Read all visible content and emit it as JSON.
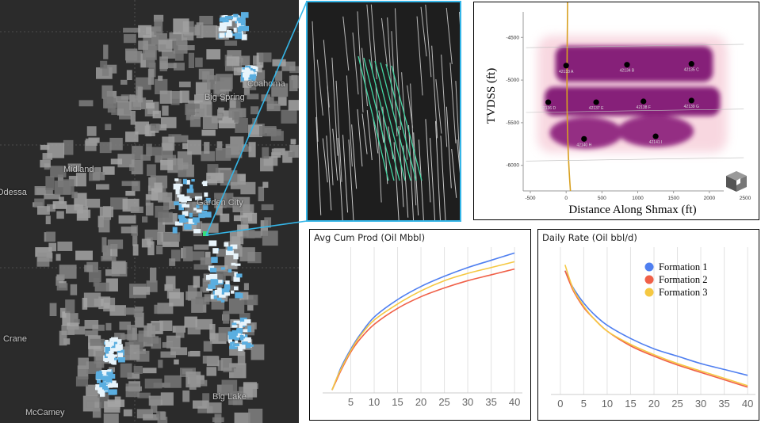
{
  "map": {
    "place_labels": [
      "Odessa",
      "Midland",
      "Garden City",
      "Big Spring",
      "Coahoma",
      "Crane",
      "McCamey",
      "Big Lake"
    ]
  },
  "chart_data": [
    {
      "type": "heatmap",
      "title": "",
      "xlabel": "Distance Along Shmax (ft)",
      "ylabel": "TVDSS (ft)",
      "xlim": [
        -600,
        2500
      ],
      "ylim": [
        -6300,
        -4200
      ],
      "x_ticks": [
        -500,
        0,
        500,
        1000,
        1500,
        2000,
        2500
      ],
      "y_ticks": [
        -4500,
        -5000,
        -5500,
        -6000
      ],
      "grid": false,
      "wells": [
        {
          "label": "42133 A",
          "x": 0,
          "y": -4830
        },
        {
          "label": "42134 B",
          "x": 850,
          "y": -4820
        },
        {
          "label": "42135 C",
          "x": 1750,
          "y": -4810
        },
        {
          "label": "42136 D",
          "x": -250,
          "y": -5260
        },
        {
          "label": "42137 E",
          "x": 420,
          "y": -5260
        },
        {
          "label": "42138 F",
          "x": 1080,
          "y": -5250
        },
        {
          "label": "42139 G",
          "x": 1750,
          "y": -5240
        },
        {
          "label": "42140 H",
          "x": 250,
          "y": -5690
        },
        {
          "label": "42141 I",
          "x": 1250,
          "y": -5660
        }
      ]
    },
    {
      "type": "line",
      "title": "Avg Cum Prod (Oil Mbbl)",
      "xlabel": "",
      "ylabel": "",
      "x_ticks": [
        5,
        10,
        15,
        20,
        25,
        30,
        35,
        40
      ],
      "xlim": [
        0,
        41
      ],
      "ylim": [
        0,
        100
      ],
      "legend": "none",
      "grid": true,
      "x": [
        1,
        2,
        3,
        5,
        7,
        10,
        15,
        20,
        25,
        30,
        35,
        40
      ],
      "series": [
        {
          "color": "#4f7ff0",
          "values": [
            2,
            10,
            18,
            30,
            40,
            52,
            64,
            73,
            80,
            86,
            91,
            96
          ]
        },
        {
          "color": "#f06048",
          "values": [
            2,
            9,
            16,
            28,
            37,
            47,
            58,
            66,
            72,
            77,
            81,
            85
          ]
        },
        {
          "color": "#f5c842",
          "values": [
            2,
            10,
            17,
            29,
            39,
            50,
            61,
            70,
            77,
            82,
            86,
            90
          ]
        }
      ]
    },
    {
      "type": "line",
      "title": "Daily Rate (Oil bbl/d)",
      "xlabel": "",
      "ylabel": "",
      "x_ticks": [
        0,
        5,
        10,
        15,
        20,
        25,
        30,
        35,
        40
      ],
      "xlim": [
        -1,
        41
      ],
      "ylim": [
        0,
        100
      ],
      "legend": "top-right",
      "grid": true,
      "x": [
        1,
        2,
        3,
        5,
        7,
        10,
        15,
        20,
        25,
        30,
        35,
        40
      ],
      "series": [
        {
          "name": "Formation 1",
          "color": "#4f7ff0",
          "values": [
            84,
            77,
            71,
            62,
            55,
            47,
            38,
            31,
            26,
            21,
            17,
            13
          ]
        },
        {
          "name": "Formation 2",
          "color": "#f06048",
          "values": [
            84,
            76,
            69,
            59,
            52,
            43,
            33,
            26,
            20,
            15,
            10,
            5
          ]
        },
        {
          "name": "Formation 3",
          "color": "#f5c842",
          "values": [
            88,
            78,
            70,
            60,
            52,
            43,
            34,
            27,
            21,
            16,
            11,
            6
          ]
        }
      ]
    }
  ]
}
